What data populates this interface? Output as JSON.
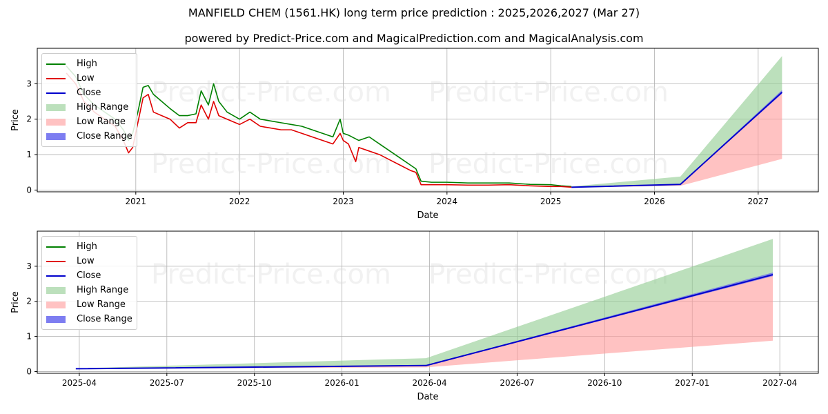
{
  "header": {
    "title": "MANFIELD CHEM (1561.HK) long term price prediction : 2025,2026,2027 (Mar 27)",
    "subtitle": "powered by Predict-Price.com and MagicalPrediction.com and MagicalAnalysis.com"
  },
  "watermark": "Predict-Price.com",
  "colors": {
    "high": "#008000",
    "low": "#e00000",
    "close": "#0000cc",
    "high_range": "#8fcc8f",
    "low_range": "#ff9999",
    "close_range": "#6666ee",
    "grid": "#b0b0b0"
  },
  "legend": [
    {
      "label": "High",
      "kind": "line",
      "color_key": "high"
    },
    {
      "label": "Low",
      "kind": "line",
      "color_key": "low"
    },
    {
      "label": "Close",
      "kind": "line",
      "color_key": "close"
    },
    {
      "label": "High Range",
      "kind": "box",
      "color_key": "high_range"
    },
    {
      "label": "Low Range",
      "kind": "box",
      "color_key": "low_range"
    },
    {
      "label": "Close Range",
      "kind": "box",
      "color_key": "close_range"
    }
  ],
  "chart_data": [
    {
      "type": "line",
      "title": "",
      "xlabel": "Date",
      "ylabel": "Price",
      "xlim": [
        2020.05,
        2027.58
      ],
      "ylim": [
        -0.05,
        4.0
      ],
      "x_ticks": [
        {
          "label": "2021",
          "x": 2021.0
        },
        {
          "label": "2022",
          "x": 2022.0
        },
        {
          "label": "2023",
          "x": 2023.0
        },
        {
          "label": "2024",
          "x": 2024.0
        },
        {
          "label": "2025",
          "x": 2025.0
        },
        {
          "label": "2026",
          "x": 2026.0
        },
        {
          "label": "2027",
          "x": 2027.0
        }
      ],
      "y_ticks": [
        0,
        1,
        2,
        3
      ],
      "series": [
        {
          "name": "High",
          "color_key": "high",
          "x": [
            2020.33,
            2020.42,
            2020.5,
            2020.6,
            2020.7,
            2020.8,
            2020.88,
            2020.93,
            2020.97,
            2021.02,
            2021.07,
            2021.12,
            2021.17,
            2021.25,
            2021.33,
            2021.42,
            2021.5,
            2021.58,
            2021.63,
            2021.7,
            2021.75,
            2021.8,
            2021.88,
            2022.0,
            2022.1,
            2022.2,
            2022.3,
            2022.4,
            2022.5,
            2022.6,
            2022.7,
            2022.8,
            2022.9,
            2022.97,
            2023.0,
            2023.05,
            2023.15,
            2023.25,
            2023.35,
            2023.45,
            2023.55,
            2023.65,
            2023.7,
            2023.75,
            2023.85,
            2024.0,
            2024.2,
            2024.4,
            2024.6,
            2024.8,
            2025.0,
            2025.1,
            2025.2
          ],
          "values": [
            3.5,
            3.2,
            2.7,
            2.4,
            2.2,
            2.0,
            1.7,
            1.4,
            1.6,
            2.2,
            2.9,
            2.95,
            2.7,
            2.5,
            2.3,
            2.1,
            2.1,
            2.15,
            2.8,
            2.4,
            3.0,
            2.5,
            2.2,
            2.0,
            2.2,
            2.0,
            1.95,
            1.9,
            1.85,
            1.8,
            1.7,
            1.6,
            1.5,
            2.0,
            1.6,
            1.55,
            1.4,
            1.5,
            1.3,
            1.1,
            0.9,
            0.7,
            0.6,
            0.25,
            0.22,
            0.22,
            0.2,
            0.2,
            0.2,
            0.16,
            0.15,
            0.12,
            0.1
          ]
        },
        {
          "name": "Low",
          "color_key": "low",
          "x": [
            2020.33,
            2020.42,
            2020.5,
            2020.6,
            2020.7,
            2020.8,
            2020.88,
            2020.93,
            2020.97,
            2021.02,
            2021.07,
            2021.12,
            2021.17,
            2021.25,
            2021.33,
            2021.42,
            2021.5,
            2021.58,
            2021.63,
            2021.7,
            2021.75,
            2021.8,
            2021.88,
            2022.0,
            2022.1,
            2022.2,
            2022.3,
            2022.4,
            2022.5,
            2022.6,
            2022.7,
            2022.8,
            2022.9,
            2022.97,
            2023.0,
            2023.05,
            2023.12,
            2023.15,
            2023.25,
            2023.35,
            2023.45,
            2023.55,
            2023.65,
            2023.7,
            2023.75,
            2023.85,
            2024.0,
            2024.2,
            2024.4,
            2024.6,
            2024.8,
            2025.0,
            2025.1,
            2025.2
          ],
          "values": [
            3.3,
            3.0,
            2.5,
            2.2,
            2.0,
            1.8,
            1.4,
            1.05,
            1.2,
            1.9,
            2.6,
            2.7,
            2.2,
            2.1,
            2.0,
            1.75,
            1.9,
            1.9,
            2.4,
            2.0,
            2.5,
            2.1,
            2.0,
            1.85,
            2.0,
            1.8,
            1.75,
            1.7,
            1.7,
            1.6,
            1.5,
            1.4,
            1.3,
            1.6,
            1.4,
            1.3,
            0.8,
            1.2,
            1.1,
            1.0,
            0.85,
            0.7,
            0.55,
            0.5,
            0.15,
            0.15,
            0.15,
            0.14,
            0.14,
            0.15,
            0.12,
            0.1,
            0.1,
            0.08
          ]
        },
        {
          "name": "Close",
          "color_key": "close",
          "x": [
            2025.2,
            2026.25,
            2027.23
          ],
          "values": [
            0.08,
            0.16,
            2.76
          ]
        }
      ],
      "ranges": [
        {
          "name": "High Range",
          "color_key": "high_range",
          "x": [
            2025.2,
            2026.25,
            2027.23
          ],
          "lower": [
            0.08,
            0.16,
            2.76
          ],
          "upper": [
            0.1,
            0.38,
            3.78
          ]
        },
        {
          "name": "Low Range",
          "color_key": "low_range",
          "x": [
            2025.2,
            2026.25,
            2027.23
          ],
          "lower": [
            0.07,
            0.12,
            0.88
          ],
          "upper": [
            0.08,
            0.16,
            2.76
          ]
        },
        {
          "name": "Close Range",
          "color_key": "close_range",
          "x": [
            2025.2,
            2026.25,
            2027.23
          ],
          "lower": [
            0.08,
            0.15,
            2.72
          ],
          "upper": [
            0.08,
            0.17,
            2.82
          ]
        }
      ]
    },
    {
      "type": "line",
      "title": "",
      "xlabel": "Date",
      "ylabel": "Price",
      "xlim": [
        2025.13,
        2027.36
      ],
      "ylim": [
        -0.05,
        4.0
      ],
      "x_ticks": [
        {
          "label": "2025-04",
          "x": 2025.25
        },
        {
          "label": "2025-07",
          "x": 2025.5
        },
        {
          "label": "2025-10",
          "x": 2025.75
        },
        {
          "label": "2026-01",
          "x": 2026.0
        },
        {
          "label": "2026-04",
          "x": 2026.25
        },
        {
          "label": "2026-07",
          "x": 2026.5
        },
        {
          "label": "2026-10",
          "x": 2026.75
        },
        {
          "label": "2027-01",
          "x": 2027.0
        },
        {
          "label": "2027-04",
          "x": 2027.25
        }
      ],
      "y_ticks": [
        0,
        1,
        2,
        3
      ],
      "series": [
        {
          "name": "Close",
          "color_key": "close",
          "x": [
            2025.24,
            2026.24,
            2027.23
          ],
          "values": [
            0.08,
            0.17,
            2.76
          ]
        }
      ],
      "ranges": [
        {
          "name": "High Range",
          "color_key": "high_range",
          "x": [
            2025.24,
            2026.24,
            2027.23
          ],
          "lower": [
            0.08,
            0.17,
            2.76
          ],
          "upper": [
            0.09,
            0.38,
            3.78
          ]
        },
        {
          "name": "Low Range",
          "color_key": "low_range",
          "x": [
            2025.24,
            2026.24,
            2027.23
          ],
          "lower": [
            0.07,
            0.12,
            0.88
          ],
          "upper": [
            0.08,
            0.17,
            2.76
          ]
        },
        {
          "name": "Close Range",
          "color_key": "close_range",
          "x": [
            2025.24,
            2026.24,
            2027.23
          ],
          "lower": [
            0.08,
            0.16,
            2.72
          ],
          "upper": [
            0.08,
            0.18,
            2.82
          ]
        }
      ]
    }
  ]
}
